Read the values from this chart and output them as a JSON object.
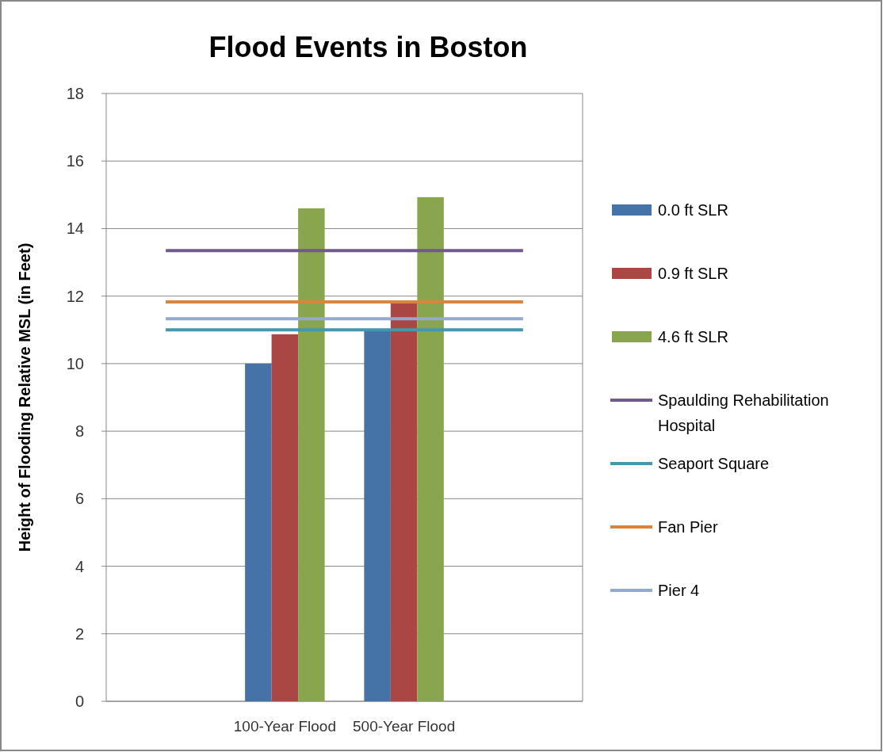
{
  "chart_data": {
    "type": "bar",
    "title": "Flood Events in Boston",
    "ylabel": "Height of Flooding Relative MSL (in Feet)",
    "categories": [
      null,
      "100-Year Flood",
      "500-Year Flood",
      null
    ],
    "series": [
      {
        "name": "0.0 ft SLR",
        "color": "#4572a7",
        "values": [
          null,
          10.0,
          11.0,
          null
        ]
      },
      {
        "name": "0.9 ft SLR",
        "color": "#aa4643",
        "values": [
          null,
          10.87,
          11.8,
          null
        ]
      },
      {
        "name": "4.6 ft SLR",
        "color": "#89a54e",
        "values": [
          null,
          14.6,
          14.93,
          null
        ]
      },
      {
        "name": "Spaulding Rehabilitation Hospital",
        "type": "line",
        "color": "#71588f",
        "values": [
          13.35,
          13.35,
          13.35,
          13.35
        ]
      },
      {
        "name": "Seaport Square",
        "type": "line",
        "color": "#4198af",
        "values": [
          11.0,
          11.0,
          11.0,
          11.0
        ]
      },
      {
        "name": "Fan Pier",
        "type": "line",
        "color": "#db843d",
        "values": [
          11.83,
          11.83,
          11.83,
          11.83
        ]
      },
      {
        "name": "Pier 4",
        "type": "line",
        "color": "#93a9cf",
        "values": [
          11.33,
          11.33,
          11.33,
          11.33
        ]
      }
    ],
    "ylim": [
      0,
      18
    ],
    "yticks": [
      0,
      2,
      4,
      6,
      8,
      10,
      12,
      14,
      16,
      18
    ],
    "grid": "y",
    "legend": "right",
    "marker": "none",
    "line_style": "solid"
  }
}
